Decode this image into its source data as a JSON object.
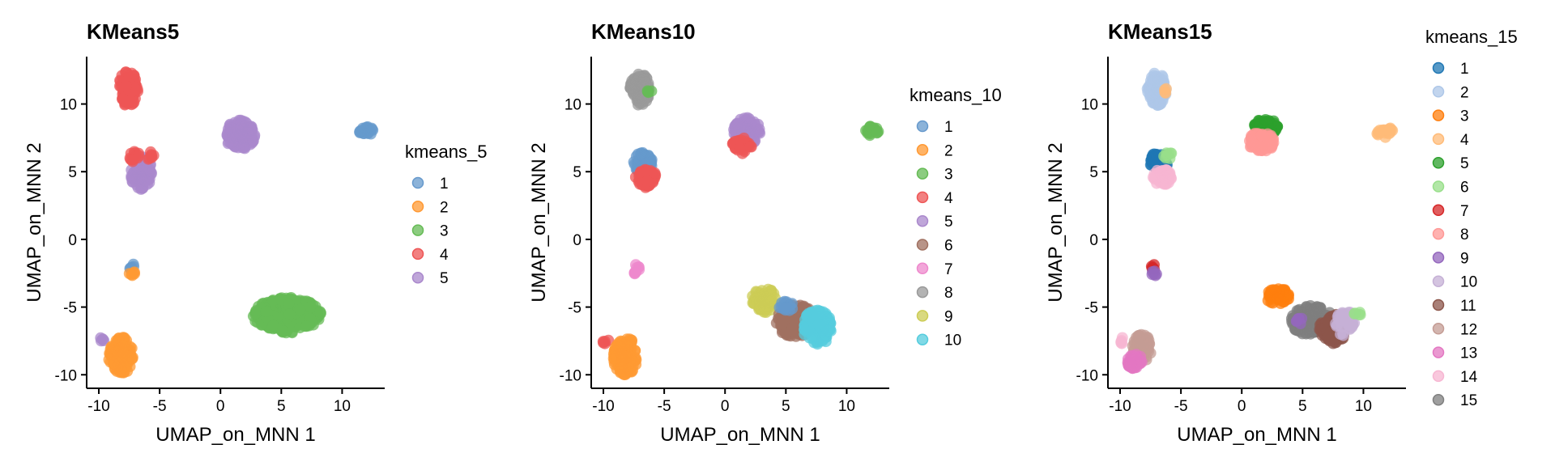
{
  "chart_data": [
    {
      "type": "scatter",
      "title": "KMeans5",
      "xlabel": "UMAP_on_MNN 1",
      "ylabel": "UMAP_on_MNN 2",
      "xlim": [
        -11,
        13.5
      ],
      "ylim": [
        -11,
        13.5
      ],
      "xticks": [
        -10,
        -5,
        0,
        5,
        10
      ],
      "yticks": [
        -10,
        -5,
        0,
        5,
        10
      ],
      "grid": false,
      "legend": {
        "title": "kmeans_5",
        "placement": "right",
        "labels": [
          "1",
          "2",
          "3",
          "4",
          "5"
        ]
      },
      "colors": {
        "1": "#6699cc",
        "2": "#ff9933",
        "3": "#66bb55",
        "4": "#ee5555",
        "5": "#aa88cc"
      },
      "clusters": [
        {
          "label": "4",
          "cx": -7.6,
          "cy": 11.1,
          "rx": 0.8,
          "ry": 1.3,
          "n": 90
        },
        {
          "label": "5",
          "cx": 1.6,
          "cy": 7.7,
          "rx": 1.2,
          "ry": 1.1,
          "n": 120
        },
        {
          "label": "1",
          "cx": 12.0,
          "cy": 8.0,
          "rx": 0.6,
          "ry": 0.35,
          "n": 20
        },
        {
          "label": "5",
          "cx": -6.5,
          "cy": 4.9,
          "rx": 0.9,
          "ry": 1.2,
          "n": 80
        },
        {
          "label": "4",
          "cx": -7.0,
          "cy": 6.1,
          "rx": 0.5,
          "ry": 0.4,
          "n": 14
        },
        {
          "label": "4",
          "cx": -5.8,
          "cy": 6.2,
          "rx": 0.35,
          "ry": 0.3,
          "n": 8
        },
        {
          "label": "1",
          "cx": -7.3,
          "cy": -2.0,
          "rx": 0.25,
          "ry": 0.2,
          "n": 6
        },
        {
          "label": "2",
          "cx": -7.3,
          "cy": -2.5,
          "rx": 0.25,
          "ry": 0.2,
          "n": 6
        },
        {
          "label": "5",
          "cx": -9.8,
          "cy": -7.5,
          "rx": 0.25,
          "ry": 0.25,
          "n": 5
        },
        {
          "label": "2",
          "cx": -8.2,
          "cy": -8.6,
          "rx": 1.0,
          "ry": 1.4,
          "n": 120
        },
        {
          "label": "3",
          "cx": 5.5,
          "cy": -5.6,
          "rx": 2.8,
          "ry": 1.3,
          "n": 320
        }
      ]
    },
    {
      "type": "scatter",
      "title": "KMeans10",
      "xlabel": "UMAP_on_MNN 1",
      "ylabel": "UMAP_on_MNN 2",
      "xlim": [
        -11,
        13.5
      ],
      "ylim": [
        -11,
        13.5
      ],
      "xticks": [
        -10,
        -5,
        0,
        5,
        10
      ],
      "yticks": [
        -10,
        -5,
        0,
        5,
        10
      ],
      "grid": false,
      "legend": {
        "title": "kmeans_10",
        "placement": "right",
        "labels": [
          "1",
          "2",
          "3",
          "4",
          "5",
          "6",
          "7",
          "8",
          "9",
          "10"
        ]
      },
      "colors": {
        "1": "#6699cc",
        "2": "#ff9933",
        "3": "#66bb55",
        "4": "#ee5555",
        "5": "#aa88cc",
        "6": "#a07060",
        "7": "#ee88cc",
        "8": "#999999",
        "9": "#cccc55",
        "10": "#55ccdd"
      },
      "clusters": [
        {
          "label": "8",
          "cx": -7.0,
          "cy": 11.1,
          "rx": 0.8,
          "ry": 1.2,
          "n": 90
        },
        {
          "label": "3",
          "cx": -6.2,
          "cy": 11.0,
          "rx": 0.2,
          "ry": 0.2,
          "n": 4
        },
        {
          "label": "5",
          "cx": 1.8,
          "cy": 8.0,
          "rx": 1.1,
          "ry": 1.0,
          "n": 110
        },
        {
          "label": "4",
          "cx": 1.4,
          "cy": 6.9,
          "rx": 0.8,
          "ry": 0.6,
          "n": 30
        },
        {
          "label": "3",
          "cx": 12.0,
          "cy": 8.0,
          "rx": 0.6,
          "ry": 0.35,
          "n": 20
        },
        {
          "label": "1",
          "cx": -6.7,
          "cy": 5.7,
          "rx": 0.8,
          "ry": 0.8,
          "n": 60
        },
        {
          "label": "4",
          "cx": -6.5,
          "cy": 4.5,
          "rx": 0.9,
          "ry": 0.7,
          "n": 60
        },
        {
          "label": "7",
          "cx": -7.3,
          "cy": -2.2,
          "rx": 0.25,
          "ry": 0.4,
          "n": 10
        },
        {
          "label": "4",
          "cx": -9.8,
          "cy": -7.5,
          "rx": 0.25,
          "ry": 0.25,
          "n": 5
        },
        {
          "label": "2",
          "cx": -8.2,
          "cy": -8.6,
          "rx": 1.0,
          "ry": 1.4,
          "n": 120
        },
        {
          "label": "9",
          "cx": 3.2,
          "cy": -4.5,
          "rx": 1.0,
          "ry": 0.9,
          "n": 60
        },
        {
          "label": "6",
          "cx": 5.8,
          "cy": -6.0,
          "rx": 1.6,
          "ry": 1.2,
          "n": 170
        },
        {
          "label": "10",
          "cx": 7.6,
          "cy": -6.5,
          "rx": 1.2,
          "ry": 1.3,
          "n": 120
        },
        {
          "label": "1",
          "cx": 5.0,
          "cy": -5.0,
          "rx": 0.6,
          "ry": 0.5,
          "n": 15
        }
      ]
    },
    {
      "type": "scatter",
      "title": "KMeans15",
      "xlabel": "UMAP_on_MNN 1",
      "ylabel": "UMAP_on_MNN 2",
      "xlim": [
        -11,
        13.5
      ],
      "ylim": [
        -11,
        13.5
      ],
      "xticks": [
        -10,
        -5,
        0,
        5,
        10
      ],
      "yticks": [
        -10,
        -5,
        0,
        5,
        10
      ],
      "grid": false,
      "legend": {
        "title": "kmeans_15",
        "placement": "top-right",
        "labels": [
          "1",
          "2",
          "3",
          "4",
          "5",
          "6",
          "7",
          "8",
          "9",
          "10",
          "11",
          "12",
          "13",
          "14",
          "15"
        ]
      },
      "colors": {
        "1": "#1f77b4",
        "2": "#aec7e8",
        "3": "#ff7f0e",
        "4": "#ffbb78",
        "5": "#2ca02c",
        "6": "#98df8a",
        "7": "#d62728",
        "8": "#ff9896",
        "9": "#9467bd",
        "10": "#c5b0d5",
        "11": "#8c564b",
        "12": "#c49c94",
        "13": "#e377c2",
        "14": "#f7b6d2",
        "15": "#7f7f7f"
      },
      "clusters": [
        {
          "label": "2",
          "cx": -7.0,
          "cy": 11.1,
          "rx": 0.8,
          "ry": 1.2,
          "n": 90
        },
        {
          "label": "4",
          "cx": -6.3,
          "cy": 11.0,
          "rx": 0.2,
          "ry": 0.2,
          "n": 4
        },
        {
          "label": "5",
          "cx": 2.0,
          "cy": 8.3,
          "rx": 1.0,
          "ry": 0.6,
          "n": 70
        },
        {
          "label": "8",
          "cx": 1.6,
          "cy": 7.2,
          "rx": 1.1,
          "ry": 0.7,
          "n": 80
        },
        {
          "label": "4",
          "cx": 11.8,
          "cy": 7.9,
          "rx": 0.7,
          "ry": 0.4,
          "n": 20
        },
        {
          "label": "1",
          "cx": -6.8,
          "cy": 5.8,
          "rx": 0.8,
          "ry": 0.6,
          "n": 60
        },
        {
          "label": "6",
          "cx": -6.0,
          "cy": 6.2,
          "rx": 0.4,
          "ry": 0.3,
          "n": 8
        },
        {
          "label": "14",
          "cx": -6.5,
          "cy": 4.6,
          "rx": 0.8,
          "ry": 0.6,
          "n": 50
        },
        {
          "label": "7",
          "cx": -7.2,
          "cy": -2.0,
          "rx": 0.25,
          "ry": 0.2,
          "n": 6
        },
        {
          "label": "9",
          "cx": -7.2,
          "cy": -2.5,
          "rx": 0.25,
          "ry": 0.2,
          "n": 6
        },
        {
          "label": "14",
          "cx": -9.8,
          "cy": -7.5,
          "rx": 0.25,
          "ry": 0.25,
          "n": 5
        },
        {
          "label": "12",
          "cx": -8.2,
          "cy": -8.0,
          "rx": 0.8,
          "ry": 1.0,
          "n": 60
        },
        {
          "label": "13",
          "cx": -8.8,
          "cy": -9.0,
          "rx": 0.6,
          "ry": 0.6,
          "n": 40
        },
        {
          "label": "3",
          "cx": 3.0,
          "cy": -4.2,
          "rx": 1.0,
          "ry": 0.6,
          "n": 50
        },
        {
          "label": "15",
          "cx": 5.8,
          "cy": -6.0,
          "rx": 1.8,
          "ry": 1.1,
          "n": 180
        },
        {
          "label": "11",
          "cx": 7.5,
          "cy": -6.6,
          "rx": 1.1,
          "ry": 1.1,
          "n": 100
        },
        {
          "label": "10",
          "cx": 8.5,
          "cy": -6.2,
          "rx": 0.8,
          "ry": 1.0,
          "n": 40
        },
        {
          "label": "9",
          "cx": 4.7,
          "cy": -6.0,
          "rx": 0.3,
          "ry": 0.3,
          "n": 6
        },
        {
          "label": "6",
          "cx": 9.5,
          "cy": -5.5,
          "rx": 0.3,
          "ry": 0.3,
          "n": 5
        }
      ]
    }
  ]
}
